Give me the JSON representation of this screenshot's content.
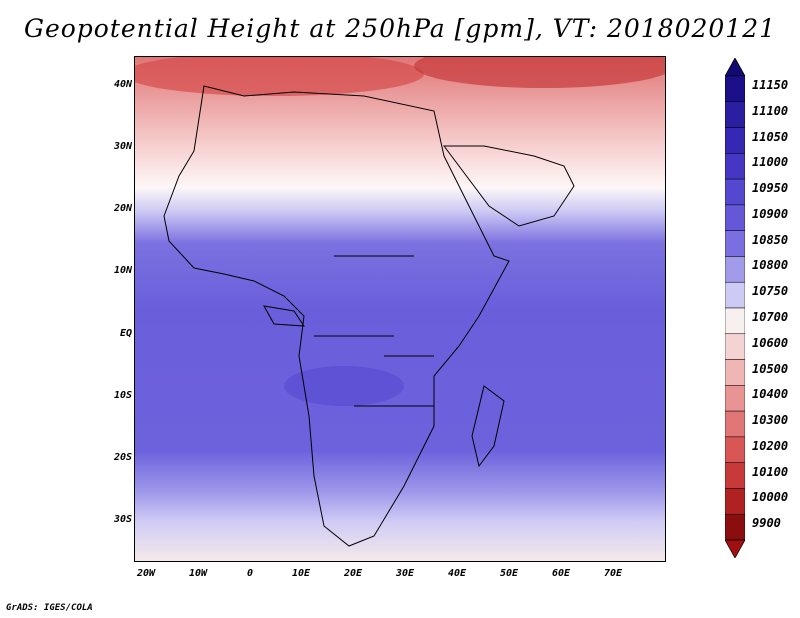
{
  "title": "Geopotential Height at 250hPa [gpm], VT: 2018020121",
  "credit": "GrADS: IGES/COLA",
  "y_axis_labels": [
    "40N",
    "30N",
    "20N",
    "10N",
    "EQ",
    "10S",
    "20S",
    "30S"
  ],
  "x_axis_labels": [
    "20W",
    "10W",
    "0",
    "10E",
    "20E",
    "30E",
    "40E",
    "50E",
    "60E",
    "70E"
  ],
  "colorbar": {
    "labels": [
      "11150",
      "11100",
      "11050",
      "11000",
      "10950",
      "10900",
      "10850",
      "10800",
      "10750",
      "10700",
      "10600",
      "10500",
      "10400",
      "10300",
      "10200",
      "10100",
      "10000",
      "9900"
    ],
    "colors": [
      "#1c0f8a",
      "#2a1fa0",
      "#3528b4",
      "#4537c4",
      "#5548d0",
      "#6457d8",
      "#7a6ee0",
      "#a19be9",
      "#cdcaf5",
      "#f8efef",
      "#f6d3d3",
      "#f0b6b6",
      "#e89494",
      "#e07676",
      "#d85656",
      "#c83a3a",
      "#b02222",
      "#8a0e0e"
    ],
    "arrow_colors": {
      "top": "#120a70",
      "bottom": "#a01010"
    }
  }
}
